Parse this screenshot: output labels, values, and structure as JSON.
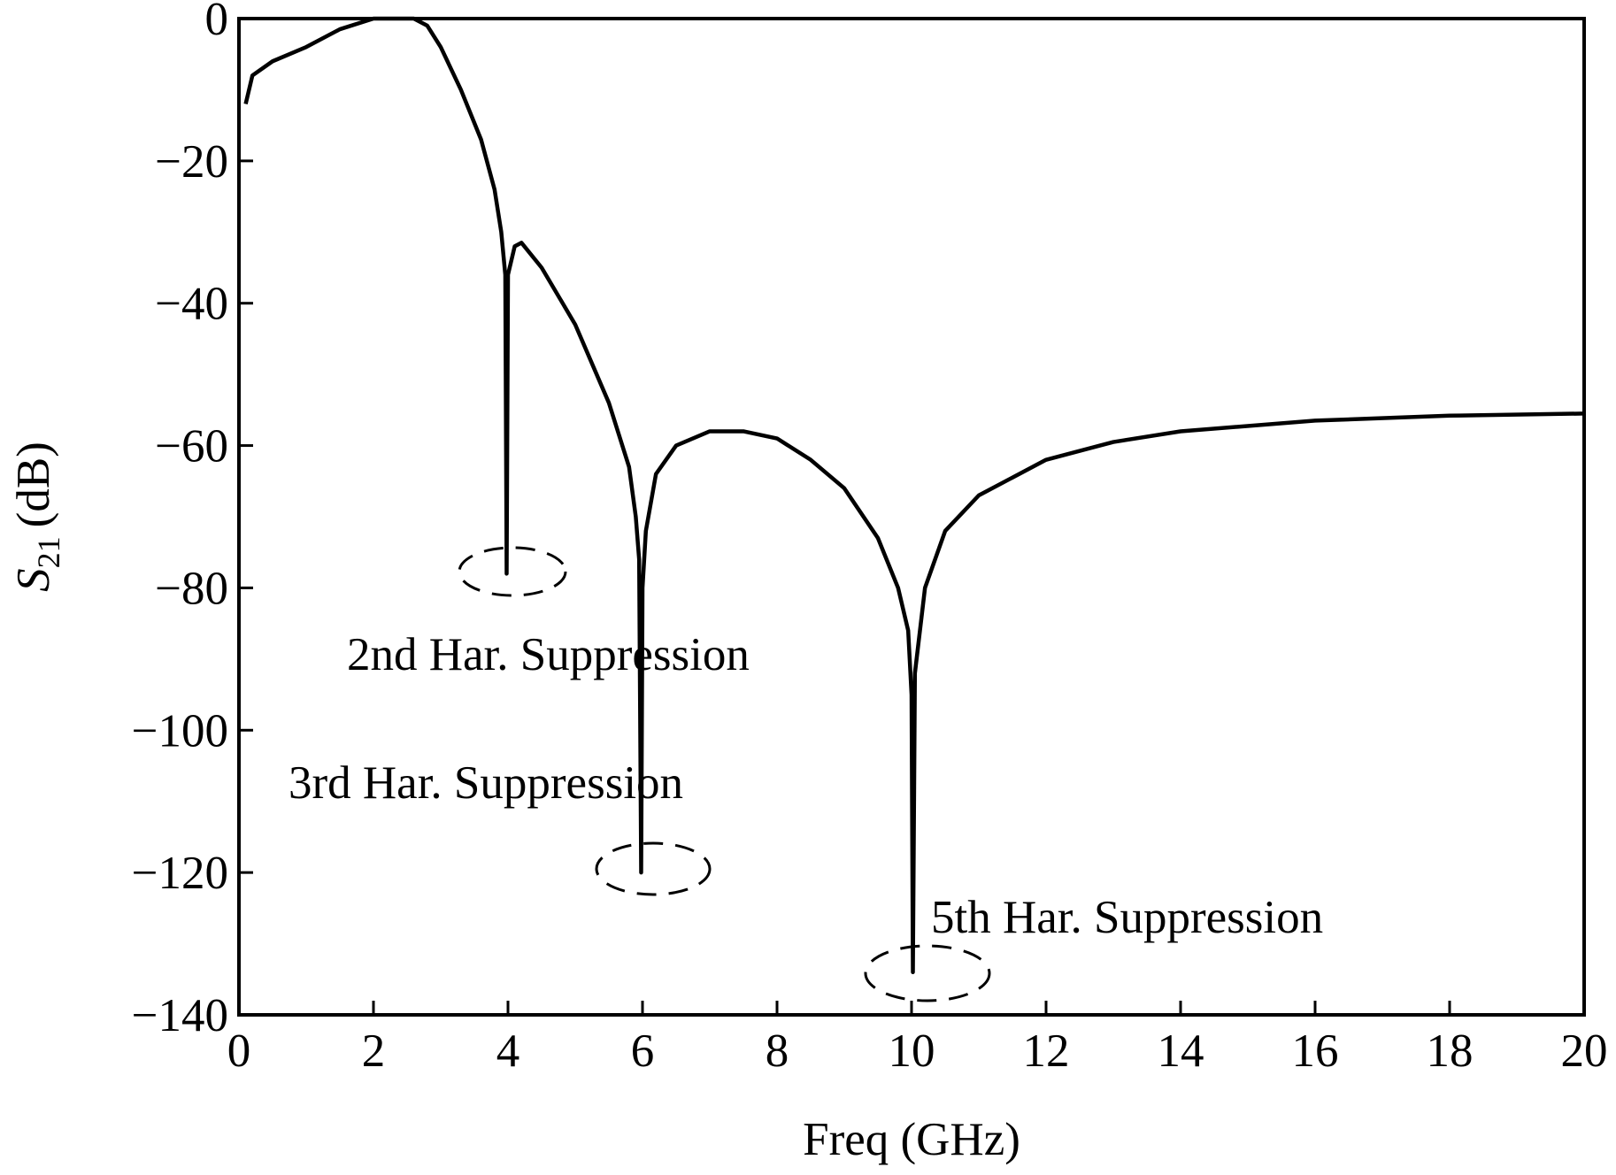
{
  "chart_data": {
    "type": "line",
    "xlabel": "Freq (GHz)",
    "ylabel": {
      "symbol": "S",
      "subscript": "21",
      "unit": "(dB)"
    },
    "xlim": [
      0,
      20
    ],
    "xticks": [
      0,
      2,
      4,
      6,
      8,
      10,
      12,
      14,
      16,
      18,
      20
    ],
    "ylim": [
      -140,
      0
    ],
    "yticks": [
      {
        "value": -140,
        "label": "−140"
      },
      {
        "value": -120,
        "label": "−120"
      },
      {
        "value": -100,
        "label": "−100"
      },
      {
        "value": -80,
        "label": "−80"
      },
      {
        "value": -60,
        "label": "−60"
      },
      {
        "value": -40,
        "label": "−40"
      },
      {
        "value": -20,
        "label": "−20"
      },
      0
    ],
    "series": [
      {
        "color": "#000000",
        "x": [
          0.1,
          0.2,
          0.5,
          1,
          1.5,
          2,
          2.6,
          2.8,
          3,
          3.3,
          3.6,
          3.8,
          3.9,
          3.96,
          3.98,
          4.0,
          4.1,
          4.2,
          4.5,
          5,
          5.5,
          5.8,
          5.9,
          5.95,
          5.98,
          6.0,
          6.05,
          6.2,
          6.5,
          7,
          7.5,
          8,
          8.5,
          9,
          9.5,
          9.8,
          9.95,
          10.0,
          10.02,
          10.05,
          10.2,
          10.5,
          11,
          12,
          13,
          14,
          16,
          18,
          20
        ],
        "values": [
          -12,
          -8,
          -6,
          -4,
          -1.5,
          0,
          0,
          -1,
          -4,
          -10,
          -17,
          -24,
          -30,
          -36,
          -78,
          -36,
          -32,
          -31.5,
          -35,
          -43,
          -54,
          -63,
          -70,
          -76,
          -120,
          -80,
          -72,
          -64,
          -60,
          -58,
          -58,
          -59,
          -62,
          -66,
          -73,
          -80,
          -86,
          -95,
          -134,
          -92,
          -80,
          -72,
          -67,
          -62,
          -59.5,
          -58,
          -56.5,
          -55.8,
          -55.5
        ]
      }
    ],
    "annotations": [
      "2nd Har. Suppression",
      "3rd Har. Suppression",
      "5th Har. Suppression"
    ]
  }
}
